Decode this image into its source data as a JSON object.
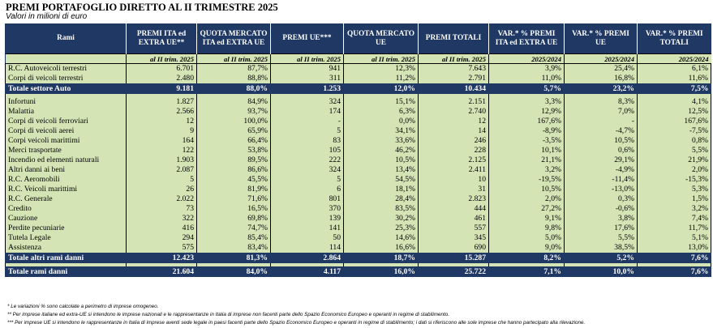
{
  "title": "PREMI PORTAFOGLIO DIRETTO AL II TRIMESTRE 2025",
  "subtitle": "Valori in milioni di euro",
  "columns": [
    "Rami",
    "PREMI ITA ed EXTRA UE**",
    "QUOTA MERCATO ITA ed EXTRA UE",
    "PREMI UE***",
    "QUOTA MERCATO UE",
    "PREMI TOTALI",
    "VAR.* % PREMI ITA ed EXTRA UE",
    "VAR.* % PREMI UE",
    "VAR.* % PREMI TOTALI"
  ],
  "subheaders": [
    "",
    "al II trim. 2025",
    "al II trim. 2025",
    "al II trim. 2025",
    "al II trim. 2025",
    "al II trim. 2025",
    "2025/2024",
    "2025/2024",
    "2025/2024"
  ],
  "auto_rows": [
    [
      "R.C. Autoveicoli terrestri",
      "6.701",
      "87,7%",
      "941",
      "12,3%",
      "7.643",
      "3,9%",
      "25,4%",
      "6,1%"
    ],
    [
      "Corpi di veicoli terrestri",
      "2.480",
      "88,8%",
      "311",
      "11,2%",
      "2.791",
      "11,0%",
      "16,8%",
      "11,6%"
    ]
  ],
  "total_auto": [
    "Totale settore Auto",
    "9.181",
    "88,0%",
    "1.253",
    "12,0%",
    "10.434",
    "5,7%",
    "23,2%",
    "7,5%"
  ],
  "other_rows": [
    [
      "Infortuni",
      "1.827",
      "84,9%",
      "324",
      "15,1%",
      "2.151",
      "3,3%",
      "8,3%",
      "4,1%"
    ],
    [
      "Malattia",
      "2.566",
      "93,7%",
      "174",
      "6,3%",
      "2.740",
      "12,9%",
      "7,0%",
      "12,5%"
    ],
    [
      "Corpi di veicoli ferroviari",
      "12",
      "100,0%",
      "-",
      "0,0%",
      "12",
      "167,6%",
      "-",
      "167,6%"
    ],
    [
      "Corpi di veicoli aerei",
      "9",
      "65,9%",
      "5",
      "34,1%",
      "14",
      "-8,9%",
      "-4,7%",
      "-7,5%"
    ],
    [
      "Corpi veicoli marittimi",
      "164",
      "66,4%",
      "83",
      "33,6%",
      "246",
      "-3,5%",
      "10,5%",
      "0,8%"
    ],
    [
      "Merci trasportate",
      "122",
      "53,8%",
      "105",
      "46,2%",
      "228",
      "10,1%",
      "0,6%",
      "5,5%"
    ],
    [
      "Incendio ed elementi naturali",
      "1.903",
      "89,5%",
      "222",
      "10,5%",
      "2.125",
      "21,1%",
      "29,1%",
      "21,9%"
    ],
    [
      "Altri danni ai beni",
      "2.087",
      "86,6%",
      "324",
      "13,4%",
      "2.411",
      "3,2%",
      "-4,9%",
      "2,0%"
    ],
    [
      "R.C. Aeromobili",
      "5",
      "45,5%",
      "5",
      "54,5%",
      "10",
      "-19,5%",
      "-11,4%",
      "-15,3%"
    ],
    [
      "R.C. Veicoli marittimi",
      "26",
      "81,9%",
      "6",
      "18,1%",
      "31",
      "10,5%",
      "-13,0%",
      "5,3%"
    ],
    [
      "R.C. Generale",
      "2.022",
      "71,6%",
      "801",
      "28,4%",
      "2.823",
      "2,0%",
      "0,3%",
      "1,5%"
    ],
    [
      "Credito",
      "73",
      "16,5%",
      "370",
      "83,5%",
      "444",
      "27,2%",
      "-0,6%",
      "3,2%"
    ],
    [
      "Cauzione",
      "322",
      "69,8%",
      "139",
      "30,2%",
      "461",
      "9,1%",
      "3,8%",
      "7,4%"
    ],
    [
      "Perdite pecuniarie",
      "416",
      "74,7%",
      "141",
      "25,3%",
      "557",
      "9,8%",
      "17,6%",
      "11,7%"
    ],
    [
      "Tutela Legale",
      "294",
      "85,4%",
      "50",
      "14,6%",
      "345",
      "5,0%",
      "5,5%",
      "5,1%"
    ],
    [
      "Assistenza",
      "575",
      "83,4%",
      "114",
      "16,6%",
      "690",
      "9,0%",
      "38,5%",
      "13,0%"
    ]
  ],
  "total_other": [
    "Totale altri rami danni",
    "12.423",
    "81,3%",
    "2.864",
    "18,7%",
    "15.287",
    "8,2%",
    "5,2%",
    "7,6%"
  ],
  "total_all": [
    "Totale rami danni",
    "21.604",
    "84,0%",
    "4.117",
    "16,0%",
    "25.722",
    "7,1%",
    "10,0%",
    "7,6%"
  ],
  "notes": [
    "* Le variazioni % sono calcolate a perimetro di imprese omogeneo.",
    "** Per imprese italiane ed extra-UE si intendono le imprese nazionali e le rappresentanze in Italia di imprese non facenti parte dello Spazio Economico Europeo e operanti in regime di stabilimento.",
    "*** Per imprese UE si intendono le rappresentanze in Italia di imprese aventi sede legale in paesi facenti parte dello Spazio Economico Europeo e operanti in regime di stabilimento; i dati si riferiscono alle sole imprese che hanno partecipato alla rilevazione."
  ],
  "colors": {
    "header_bg": "#1f3864",
    "row_bg": "#d5e4b5",
    "header_text": "#ffffff"
  }
}
